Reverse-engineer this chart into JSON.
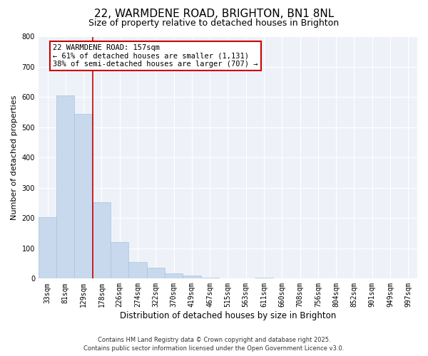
{
  "title": "22, WARMDENE ROAD, BRIGHTON, BN1 8NL",
  "subtitle": "Size of property relative to detached houses in Brighton",
  "xlabel": "Distribution of detached houses by size in Brighton",
  "ylabel": "Number of detached properties",
  "bar_labels": [
    "33sqm",
    "81sqm",
    "129sqm",
    "178sqm",
    "226sqm",
    "274sqm",
    "322sqm",
    "370sqm",
    "419sqm",
    "467sqm",
    "515sqm",
    "563sqm",
    "611sqm",
    "660sqm",
    "708sqm",
    "756sqm",
    "804sqm",
    "852sqm",
    "901sqm",
    "949sqm",
    "997sqm"
  ],
  "bar_values": [
    203,
    605,
    545,
    253,
    120,
    55,
    35,
    18,
    10,
    4,
    0,
    0,
    2,
    0,
    0,
    1,
    0,
    0,
    0,
    0,
    0
  ],
  "bar_color": "#c8d8ed",
  "bar_edge_color": "#aac4de",
  "property_line_x": 2.5,
  "property_line_color": "#cc0000",
  "annotation_line1": "22 WARMDENE ROAD: 157sqm",
  "annotation_line2": "← 61% of detached houses are smaller (1,131)",
  "annotation_line3": "38% of semi-detached houses are larger (707) →",
  "annotation_box_color": "#cc0000",
  "ylim": [
    0,
    800
  ],
  "yticks": [
    0,
    100,
    200,
    300,
    400,
    500,
    600,
    700,
    800
  ],
  "background_color": "#ffffff",
  "plot_bg_color": "#eef2f8",
  "grid_color": "#ffffff",
  "footer_line1": "Contains HM Land Registry data © Crown copyright and database right 2025.",
  "footer_line2": "Contains public sector information licensed under the Open Government Licence v3.0.",
  "title_fontsize": 11,
  "subtitle_fontsize": 9,
  "xlabel_fontsize": 8.5,
  "ylabel_fontsize": 8,
  "tick_fontsize": 7,
  "annotation_fontsize": 7.5,
  "footer_fontsize": 6
}
